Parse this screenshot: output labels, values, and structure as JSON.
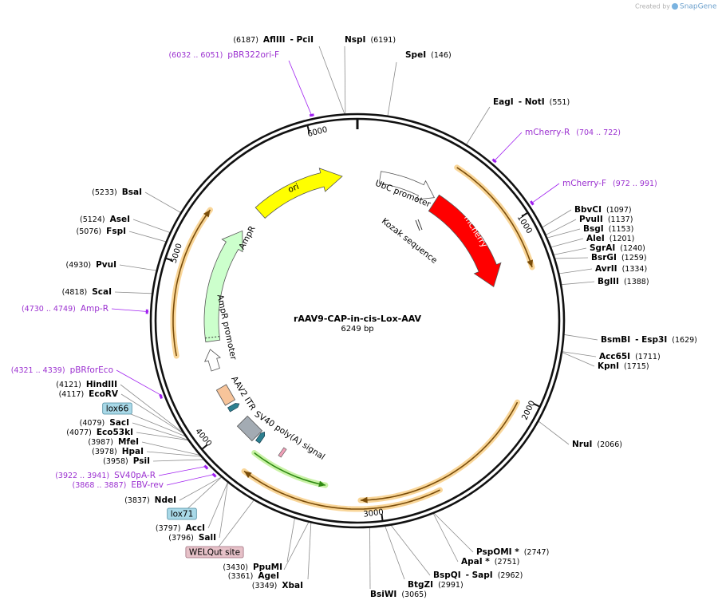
{
  "watermark": {
    "prefix": "Created by",
    "brand": "SnapGene"
  },
  "map": {
    "name": "rAAV9-CAP-in-cis-Lox-AAV",
    "length": "6249 bp",
    "ticks": [
      1000,
      2000,
      3000,
      4000,
      5000,
      6000
    ]
  },
  "features": [
    {
      "label": "ori"
    },
    {
      "label": "UbC promoter"
    },
    {
      "label": "mCherry"
    },
    {
      "label": "Kozak sequence"
    },
    {
      "label": "AmpR"
    },
    {
      "label": "AmpR promoter"
    },
    {
      "label": "AAV2 ITR"
    },
    {
      "label": "SV40 poly(A) signal"
    }
  ],
  "boxed_features": [
    {
      "label": "lox66"
    },
    {
      "label": "lox71"
    },
    {
      "label": "WELQut site"
    }
  ],
  "sites": [
    {
      "names": [
        "AflIII",
        "- PciI"
      ],
      "position": "(6187)"
    },
    {
      "names": [
        "NspI"
      ],
      "position": "(6191)"
    },
    {
      "names": [
        "SpeI"
      ],
      "position": "(146)"
    },
    {
      "names": [
        "EagI",
        "- NotI"
      ],
      "position": "(551)"
    },
    {
      "names": [
        "BbvCI"
      ],
      "position": "(1097)"
    },
    {
      "names": [
        "PvuII"
      ],
      "position": "(1137)"
    },
    {
      "names": [
        "BsgI"
      ],
      "position": "(1153)"
    },
    {
      "names": [
        "AleI"
      ],
      "position": "(1201)"
    },
    {
      "names": [
        "SgrAI"
      ],
      "position": "(1240)"
    },
    {
      "names": [
        "BsrGI"
      ],
      "position": "(1259)"
    },
    {
      "names": [
        "AvrII"
      ],
      "position": "(1334)"
    },
    {
      "names": [
        "BglII"
      ],
      "position": "(1388)"
    },
    {
      "names": [
        "BsmBI",
        "- Esp3I"
      ],
      "position": "(1629)"
    },
    {
      "names": [
        "Acc65I"
      ],
      "position": "(1711)"
    },
    {
      "names": [
        "KpnI"
      ],
      "position": "(1715)"
    },
    {
      "names": [
        "NruI"
      ],
      "position": "(2066)"
    },
    {
      "names": [
        "PspOMI *"
      ],
      "position": "(2747)"
    },
    {
      "names": [
        "ApaI *"
      ],
      "position": "(2751)"
    },
    {
      "names": [
        "BspQI",
        "- SapI"
      ],
      "position": "(2962)"
    },
    {
      "names": [
        "BtgZI"
      ],
      "position": "(2991)"
    },
    {
      "names": [
        "BsiWI"
      ],
      "position": "(3065)"
    },
    {
      "names": [
        "XbaI"
      ],
      "position": "(3349)"
    },
    {
      "names": [
        "AgeI"
      ],
      "position": "(3361)"
    },
    {
      "names": [
        "PpuMI"
      ],
      "position": "(3430)"
    },
    {
      "names": [
        "SalI"
      ],
      "position": "(3796)"
    },
    {
      "names": [
        "AccI"
      ],
      "position": "(3797)"
    },
    {
      "names": [
        "NdeI"
      ],
      "position": "(3837)"
    },
    {
      "names": [
        "PsiI"
      ],
      "position": "(3958)"
    },
    {
      "names": [
        "HpaI"
      ],
      "position": "(3978)"
    },
    {
      "names": [
        "MfeI"
      ],
      "position": "(3987)"
    },
    {
      "names": [
        "Eco53kI"
      ],
      "position": "(4077)"
    },
    {
      "names": [
        "SacI"
      ],
      "position": "(4079)"
    },
    {
      "names": [
        "EcoRV"
      ],
      "position": "(4117)"
    },
    {
      "names": [
        "HindIII"
      ],
      "position": "(4121)"
    },
    {
      "names": [
        "ScaI"
      ],
      "position": "(4818)"
    },
    {
      "names": [
        "PvuI"
      ],
      "position": "(4930)"
    },
    {
      "names": [
        "FspI"
      ],
      "position": "(5076)"
    },
    {
      "names": [
        "AseI"
      ],
      "position": "(5124)"
    },
    {
      "names": [
        "BsaI"
      ],
      "position": "(5233)"
    }
  ],
  "primers": [
    {
      "name": "mCherry-R",
      "range": "(704 .. 722)"
    },
    {
      "name": "mCherry-F",
      "range": "(972 .. 991)"
    },
    {
      "name": "EBV-rev",
      "range": "(3868 .. 3887)"
    },
    {
      "name": "SV40pA-R",
      "range": "(3922 .. 3941)"
    },
    {
      "name": "pBRforEco",
      "range": "(4321 .. 4339)"
    },
    {
      "name": "Amp-R",
      "range": "(4730 .. 4749)"
    },
    {
      "name": "pBR322ori-F",
      "range": "(6032 .. 6051)"
    }
  ]
}
